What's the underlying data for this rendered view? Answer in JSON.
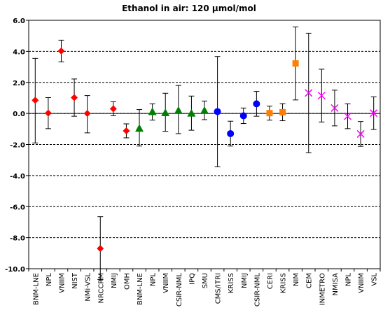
{
  "chart_data": {
    "type": "scatter",
    "title": "Ethanol in air: 120 µmol/mol",
    "xlabel": "",
    "ylabel": "",
    "ylim": [
      -10.0,
      6.0
    ],
    "yticks": [
      "6.0",
      "4.0",
      "2.0",
      "0.0",
      "-2.0",
      "-4.0",
      "-6.0",
      "-8.0",
      "-10.0"
    ],
    "grid": true,
    "legend": "none",
    "categories": [
      "BNM-LNE",
      "NPL",
      "VNIIM",
      "NIST",
      "NMi-VSL",
      "NRCCRM",
      "NMIJ",
      "OMH",
      "BNM-LNE",
      "NPL",
      "VNIIM",
      "CSIR-NML",
      "IPQ",
      "SMU",
      "CMS/ITRI",
      "KRISS",
      "NMIJ",
      "CSIR-NML",
      "CERI",
      "KRISS",
      "NIM",
      "CEM",
      "INMETRO",
      "NMISA",
      "NPL",
      "VNIIM",
      "VSL"
    ],
    "series": [
      {
        "marker": "diamond",
        "color": "#ff0000",
        "x": [
          0,
          1,
          2,
          3,
          4,
          5,
          6,
          7
        ],
        "values": [
          0.85,
          0.02,
          4.02,
          1.02,
          0.0,
          -8.7,
          0.3,
          -1.12
        ],
        "err_low": [
          2.75,
          1.0,
          0.7,
          1.2,
          1.25,
          2.0,
          0.45,
          0.45
        ],
        "err_high": [
          2.7,
          1.0,
          0.7,
          1.2,
          1.15,
          2.05,
          0.45,
          0.45
        ]
      },
      {
        "marker": "triangle",
        "color": "#008000",
        "x": [
          8,
          9,
          10,
          11,
          12,
          13
        ],
        "values": [
          -0.95,
          0.12,
          0.05,
          0.2,
          0.02,
          0.2
        ],
        "err_low": [
          1.15,
          0.55,
          1.2,
          1.5,
          1.1,
          0.6
        ],
        "err_high": [
          1.2,
          0.5,
          1.25,
          1.6,
          1.1,
          0.6
        ]
      },
      {
        "marker": "circle",
        "color": "#0000ff",
        "x": [
          14,
          15,
          16,
          17
        ],
        "values": [
          0.12,
          -1.3,
          -0.15,
          0.62
        ],
        "err_low": [
          3.55,
          0.8,
          0.5,
          0.8
        ],
        "err_high": [
          3.55,
          0.8,
          0.5,
          0.8
        ]
      },
      {
        "marker": "square",
        "color": "#ff8000",
        "x": [
          18,
          19,
          20
        ],
        "values": [
          0.02,
          0.08,
          3.22
        ],
        "err_low": [
          0.45,
          0.55,
          2.35
        ],
        "err_high": [
          0.45,
          0.55,
          2.35
        ]
      },
      {
        "marker": "cross",
        "color": "#ff00ff",
        "x": [
          21,
          22,
          23,
          24,
          25,
          26
        ],
        "values": [
          1.32,
          1.15,
          0.35,
          -0.18,
          -1.32,
          0.02
        ],
        "err_low": [
          3.85,
          1.7,
          1.15,
          0.8,
          0.8,
          1.05
        ],
        "err_high": [
          3.85,
          1.7,
          1.15,
          0.8,
          0.8,
          1.05
        ]
      }
    ]
  }
}
